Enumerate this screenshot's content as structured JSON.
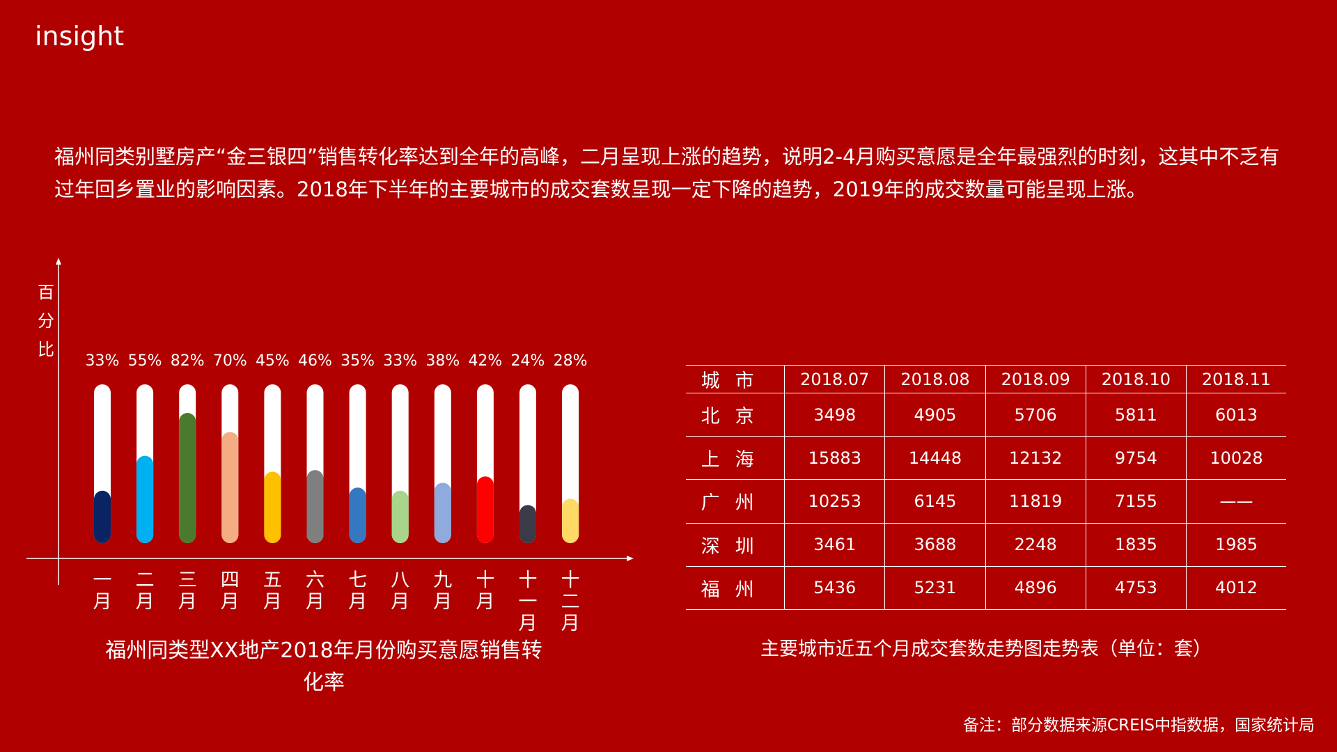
{
  "header": {
    "title": "insight"
  },
  "insight": "福州同类别墅房产“金三银四”销售转化率达到全年的高峰，二月呈现上涨的趋势，说明2-4月购买意愿是全年最强烈的时刻，这其中不乏有过年回乡置业的影响因素。2018年下半年的主要城市的成交套数呈现一定下降的趋势，2019年的成交数量可能呈现上涨。",
  "chart_data": {
    "type": "bar",
    "title": "福州同类型XX地产2018年月份购买意愿销售转化率",
    "ylabel": "百分比",
    "ylim": [
      0,
      100
    ],
    "grid": false,
    "categories": [
      "一月",
      "二月",
      "三月",
      "四月",
      "五月",
      "六月",
      "七月",
      "八月",
      "九月",
      "十月",
      "十一月",
      "十二月"
    ],
    "values": [
      33,
      55,
      82,
      70,
      45,
      46,
      35,
      33,
      38,
      42,
      24,
      28
    ],
    "value_labels": [
      "33%",
      "55%",
      "82%",
      "70%",
      "45%",
      "46%",
      "35%",
      "33%",
      "38%",
      "42%",
      "24%",
      "28%"
    ],
    "colors": [
      "#0a2463",
      "#00b0f0",
      "#4a7a2e",
      "#f4ac82",
      "#ffc000",
      "#7f7f7f",
      "#3577c0",
      "#a8d58b",
      "#8faadc",
      "#ff0000",
      "#3a3a48",
      "#ffd966"
    ]
  },
  "table": {
    "caption": "主要城市近五个月成交套数走势图走势表（单位：套）",
    "headers": [
      "城市",
      "2018.07",
      "2018.08",
      "2018.09",
      "2018.10",
      "2018.11"
    ],
    "rows": [
      [
        "北京",
        "3498",
        "4905",
        "5706",
        "5811",
        "6013"
      ],
      [
        "上海",
        "15883",
        "14448",
        "12132",
        "9754",
        "10028"
      ],
      [
        "广州",
        "10253",
        "6145",
        "11819",
        "7155",
        "——"
      ],
      [
        "深圳",
        "3461",
        "3688",
        "2248",
        "1835",
        "1985"
      ],
      [
        "福州",
        "5436",
        "5231",
        "4896",
        "4753",
        "4012"
      ]
    ]
  },
  "footnote": "备注：部分数据来源CREIS中指数据，国家统计局"
}
